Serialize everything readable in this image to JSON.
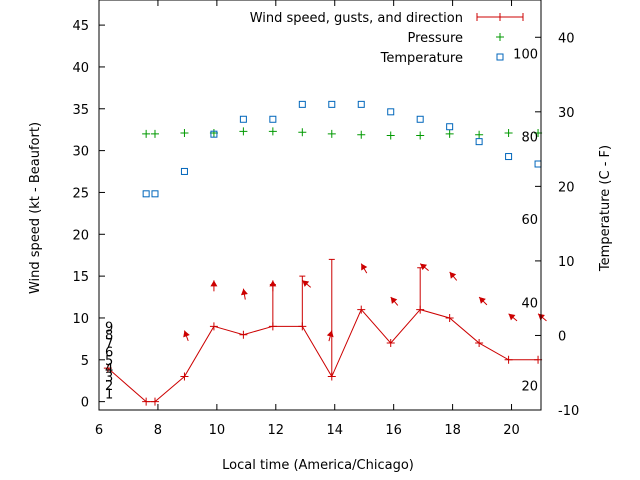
{
  "chart_data": {
    "type": "line",
    "xlabel": "Local time (America/Chicago)",
    "ylabel": "Wind speed (kt - Beaufort)",
    "y2label": "Temperature (C - F)",
    "xlim": [
      6,
      21
    ],
    "ylim": [
      -1,
      48
    ],
    "y2lim": [
      -10,
      45
    ],
    "grid": false,
    "legend_position": "top-right",
    "x_ticks": [
      "6",
      "8",
      "10",
      "12",
      "14",
      "16",
      "18",
      "20"
    ],
    "y_ticks": [
      "0",
      "5",
      "10",
      "15",
      "20",
      "25",
      "30",
      "35",
      "40",
      "45"
    ],
    "y2_ticks": [
      "-10",
      "0",
      "10",
      "20",
      "30",
      "40"
    ],
    "beaufort_labels": [
      {
        "value": 1,
        "label": "1"
      },
      {
        "value": 2,
        "label": "2"
      },
      {
        "value": 3,
        "label": "3"
      },
      {
        "value": 4,
        "label": "4"
      },
      {
        "value": 5,
        "label": "5"
      },
      {
        "value": 6,
        "label": "6"
      },
      {
        "value": 7,
        "label": "7"
      },
      {
        "value": 8,
        "label": "8"
      },
      {
        "value": 9,
        "label": "9"
      }
    ],
    "fahrenheit_labels": [
      {
        "celsius": -6.7,
        "label": "20"
      },
      {
        "celsius": 4.4,
        "label": "40"
      },
      {
        "celsius": 15.6,
        "label": "60"
      },
      {
        "celsius": 26.7,
        "label": "80"
      },
      {
        "celsius": 37.8,
        "label": "100"
      }
    ],
    "series": [
      {
        "name": "Wind speed, gusts, and direction",
        "color": "#cc0000",
        "x": [
          6.3,
          7.6,
          7.9,
          8.9,
          9.9,
          10.9,
          11.9,
          12.9,
          13.9,
          14.9,
          15.9,
          16.9,
          17.9,
          18.9,
          19.9,
          20.9
        ],
        "y": [
          4,
          0,
          0,
          3,
          9,
          8,
          9,
          9,
          3,
          11,
          7,
          11,
          10,
          7,
          5,
          5
        ],
        "gusts": [
          null,
          null,
          null,
          null,
          null,
          null,
          14,
          15,
          17,
          null,
          null,
          16,
          null,
          null,
          null,
          null
        ],
        "direction_deg": [
          null,
          null,
          null,
          340,
          0,
          350,
          0,
          310,
          15,
          330,
          320,
          310,
          320,
          315,
          310,
          310
        ]
      },
      {
        "name": "Pressure",
        "color": "#009900",
        "x": [
          7.6,
          7.9,
          8.9,
          9.9,
          10.9,
          11.9,
          12.9,
          13.9,
          14.9,
          15.9,
          16.9,
          17.9,
          18.9,
          19.9,
          20.9
        ],
        "y": [
          32.0,
          32.0,
          32.1,
          32.1,
          32.3,
          32.3,
          32.2,
          32.0,
          31.9,
          31.8,
          31.8,
          32.0,
          31.9,
          32.1,
          32.1
        ]
      },
      {
        "name": "Temperature",
        "color": "#0066bb",
        "x": [
          7.6,
          7.9,
          8.9,
          9.9,
          10.9,
          11.9,
          12.9,
          13.9,
          14.9,
          15.9,
          16.9,
          17.9,
          18.9,
          19.9,
          20.9
        ],
        "y_celsius": [
          19,
          19,
          22,
          27,
          29,
          29,
          31,
          31,
          31,
          30,
          29,
          28,
          26,
          24,
          23
        ]
      }
    ]
  }
}
